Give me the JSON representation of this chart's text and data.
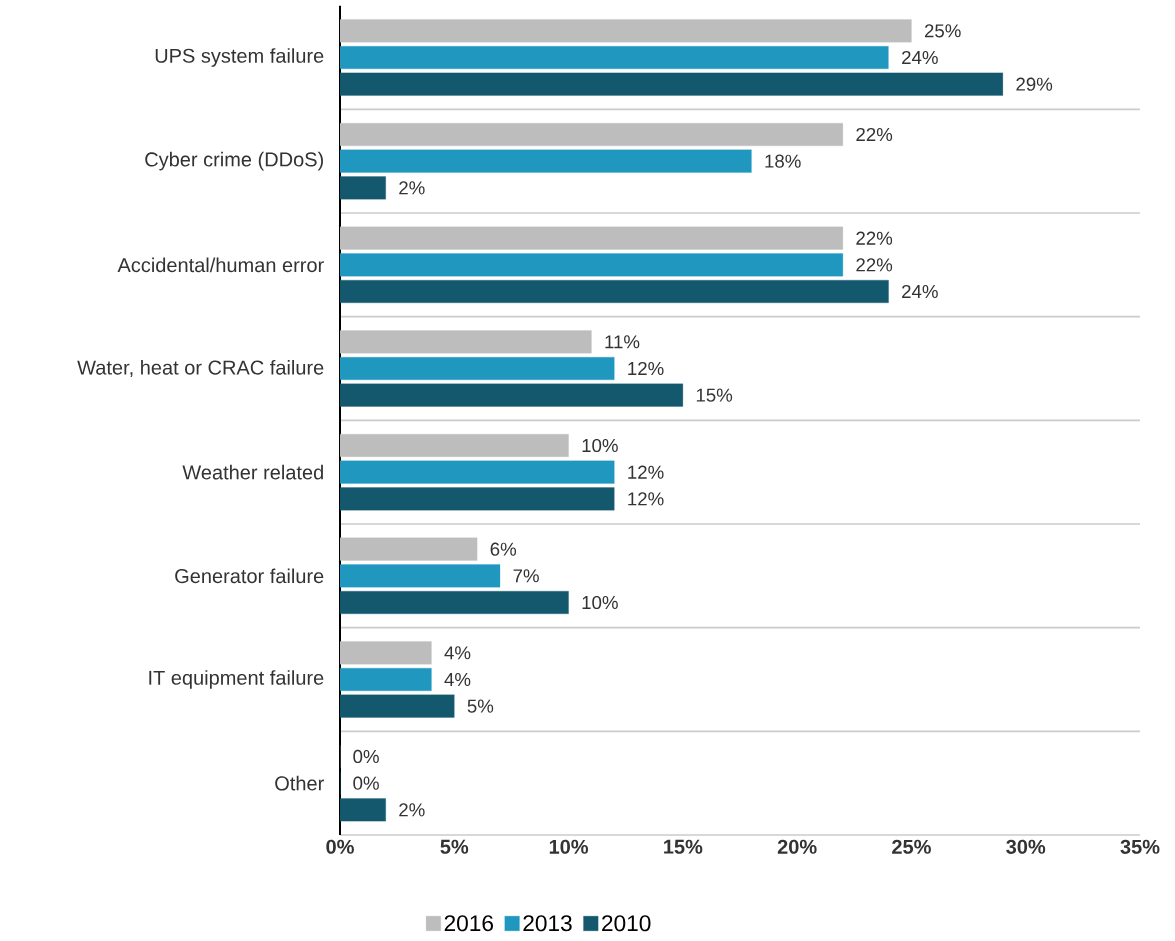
{
  "chart_data": {
    "type": "bar",
    "orientation": "horizontal",
    "categories": [
      "UPS system failure",
      "Cyber crime (DDoS)",
      "Accidental/human error",
      "Water, heat or CRAC failure",
      "Weather related",
      "Generator failure",
      "IT equipment failure",
      "Other"
    ],
    "series": [
      {
        "name": "2016",
        "color": "#bdbdbd",
        "values": [
          25,
          22,
          22,
          11,
          10,
          6,
          4,
          0
        ],
        "value_labels": [
          "25%",
          "22%",
          "22%",
          "11%",
          "10%",
          "6%",
          "4%",
          "0%"
        ]
      },
      {
        "name": "2013",
        "color": "#1f97bf",
        "values": [
          24,
          18,
          22,
          12,
          12,
          7,
          4,
          0
        ],
        "value_labels": [
          "24%",
          "18%",
          "22%",
          "12%",
          "12%",
          "7%",
          "4%",
          "0%"
        ]
      },
      {
        "name": "2010",
        "color": "#14586e",
        "values": [
          29,
          2,
          24,
          15,
          12,
          10,
          5,
          2
        ],
        "value_labels": [
          "29%",
          "2%",
          "24%",
          "15%",
          "12%",
          "10%",
          "5%",
          "2%"
        ]
      }
    ],
    "xlim": [
      0,
      35
    ],
    "xticks": [
      {
        "value": 0,
        "label": "0%"
      },
      {
        "value": 5,
        "label": "5%"
      },
      {
        "value": 10,
        "label": "10%"
      },
      {
        "value": 15,
        "label": "15%"
      },
      {
        "value": 20,
        "label": "20%"
      },
      {
        "value": 25,
        "label": "25%"
      },
      {
        "value": 30,
        "label": "30%"
      },
      {
        "value": 35,
        "label": "35%"
      }
    ],
    "grid": "y",
    "legend": "bottom"
  }
}
